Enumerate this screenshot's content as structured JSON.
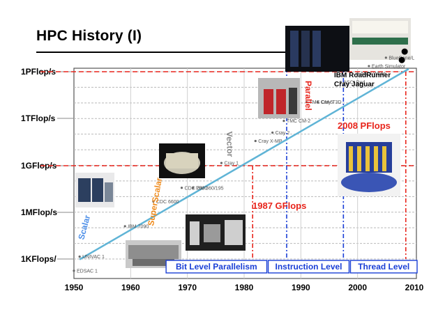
{
  "title": "HPC History (I)",
  "chart_data": {
    "type": "line",
    "x_ticks": [
      1950,
      1960,
      1970,
      1980,
      1990,
      2000,
      2010
    ],
    "y_ticks": [
      "1KFlops/",
      "1MFlop/s",
      "1GFlop/s",
      "1TFlop/s",
      "1PFlop/s"
    ],
    "xlim": [
      1950,
      2010
    ],
    "grid": true,
    "trend": {
      "from": [
        1951,
        0.05
      ],
      "to": [
        2009,
        4.0
      ]
    },
    "machines": [
      {
        "name": "EDSAC 1",
        "x": 1950,
        "y": -0.25
      },
      {
        "name": "UNIVAC 1",
        "x": 1951,
        "y": 0.05
      },
      {
        "name": "IBM 7090",
        "x": 1959,
        "y": 0.7
      },
      {
        "name": "CDC 6600",
        "x": 1964,
        "y": 1.23
      },
      {
        "name": "CDC 7600",
        "x": 1969,
        "y": 1.52
      },
      {
        "name": "IBM 360/195",
        "x": 1971,
        "y": 1.52
      },
      {
        "name": "Cray 1",
        "x": 1976,
        "y": 2.05
      },
      {
        "name": "Cray X-MP",
        "x": 1982,
        "y": 2.52
      },
      {
        "name": "Cray 2",
        "x": 1985,
        "y": 2.7
      },
      {
        "name": "TMC CM-2",
        "x": 1987,
        "y": 2.95
      },
      {
        "name": "TMC CM-5",
        "x": 1991,
        "y": 3.35
      },
      {
        "name": "Cray T3D",
        "x": 1993,
        "y": 3.35
      },
      {
        "name": "ASCI Red",
        "x": 1997,
        "y": 3.78
      },
      {
        "name": "ASCI White",
        "x": 2000,
        "y": 3.96
      },
      {
        "name": "Earth Simulator",
        "x": 2002,
        "y": 4.12
      },
      {
        "name": "BlueGene/L",
        "x": 2005,
        "y": 4.3
      }
    ],
    "highlights": [
      {
        "name": "IBM RoadRunner",
        "x": 2008.3,
        "y": 4.43
      },
      {
        "name": "Cray Jaguar",
        "x": 2007.8,
        "y": 4.25
      }
    ],
    "paradigms": [
      "Scalar",
      "SuperScalar",
      "Vector",
      "Parallel"
    ],
    "milestones": [
      {
        "label": "1987 GFlops",
        "x": 1981.5
      },
      {
        "label": "2008 PFlops",
        "x": 2008.5
      }
    ],
    "eras": [
      {
        "label": "Bit Level Parallelism",
        "x_start": 1966,
        "x_end": 1984
      },
      {
        "label": "Instruction Level",
        "x_start": 1984,
        "x_end": 1998.5
      },
      {
        "label": "Thread Level",
        "x_start": 1998.5,
        "x_end": 2010.5
      }
    ],
    "boundaries": [
      {
        "x": 1987.5,
        "color": "#1a3fd6"
      },
      {
        "x": 1997.5,
        "color": "#1a3fd6"
      }
    ],
    "colors": {
      "trend": "#5fb4d6",
      "milestone": "#e8241b",
      "era": "#1a3fd6",
      "vector_label": "#888888",
      "superscalar_label": "#f08c1e",
      "scalar_label": "#4d8fe8",
      "parallel_label": "#e8241b"
    }
  }
}
